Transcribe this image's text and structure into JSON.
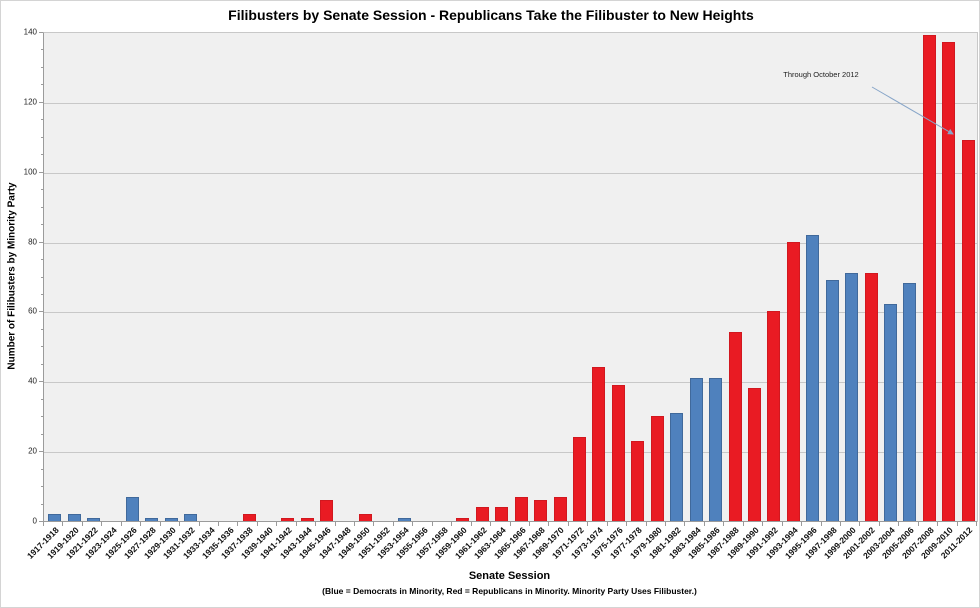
{
  "chart_data": {
    "type": "bar",
    "title": "Filibusters by Senate Session - Republicans Take the Filibuster to New Heights",
    "xlabel": "Senate Session",
    "xlabel_note": "(Blue = Democrats in Minority, Red = Republicans  in Minority. Minority Party Uses Filibuster.)",
    "ylabel": "Number of Filibusters by Minority Party",
    "ylim": [
      0,
      140
    ],
    "y_major_ticks": [
      0,
      20,
      40,
      60,
      80,
      100,
      120,
      140
    ],
    "y_minor_unit": 5,
    "grid": "horizontal-major-on",
    "legend_position": "none",
    "annotation": {
      "text": "Through October 2012",
      "points_to": "2011-2012"
    },
    "colors": {
      "democrats_in_minority_blue": "#4f81bd",
      "republicans_in_minority_red": "#e91b23",
      "plot_background": "#f0f0f0",
      "gridline": "#c8c8c8",
      "axis": "#9b9b9b",
      "annotation_arrow": "#87a5c8"
    },
    "bars": [
      {
        "session": "1917-1918",
        "value": 2,
        "minority": "D"
      },
      {
        "session": "1919-1920",
        "value": 2,
        "minority": "D"
      },
      {
        "session": "1921-1922",
        "value": 1,
        "minority": "D"
      },
      {
        "session": "1923-1924",
        "value": 0,
        "minority": "D"
      },
      {
        "session": "1925-1926",
        "value": 7,
        "minority": "D"
      },
      {
        "session": "1927-1928",
        "value": 1,
        "minority": "D"
      },
      {
        "session": "1929-1930",
        "value": 1,
        "minority": "D"
      },
      {
        "session": "1931-1932",
        "value": 2,
        "minority": "D"
      },
      {
        "session": "1933-1934",
        "value": 0,
        "minority": "R"
      },
      {
        "session": "1935-1936",
        "value": 0,
        "minority": "R"
      },
      {
        "session": "1937-1938",
        "value": 2,
        "minority": "R"
      },
      {
        "session": "1939-1940",
        "value": 0,
        "minority": "R"
      },
      {
        "session": "1941-1942",
        "value": 1,
        "minority": "R"
      },
      {
        "session": "1943-1944",
        "value": 1,
        "minority": "R"
      },
      {
        "session": "1945-1946",
        "value": 6,
        "minority": "R"
      },
      {
        "session": "1947-1948",
        "value": 0,
        "minority": "D"
      },
      {
        "session": "1949-1950",
        "value": 2,
        "minority": "R"
      },
      {
        "session": "1951-1952",
        "value": 0,
        "minority": "R"
      },
      {
        "session": "1953-1954",
        "value": 1,
        "minority": "D"
      },
      {
        "session": "1955-1956",
        "value": 0,
        "minority": "R"
      },
      {
        "session": "1957-1958",
        "value": 0,
        "minority": "R"
      },
      {
        "session": "1959-1960",
        "value": 1,
        "minority": "R"
      },
      {
        "session": "1961-1962",
        "value": 4,
        "minority": "R"
      },
      {
        "session": "1963-1964",
        "value": 4,
        "minority": "R"
      },
      {
        "session": "1965-1966",
        "value": 7,
        "minority": "R"
      },
      {
        "session": "1967-1968",
        "value": 6,
        "minority": "R"
      },
      {
        "session": "1969-1970",
        "value": 7,
        "minority": "R"
      },
      {
        "session": "1971-1972",
        "value": 24,
        "minority": "R"
      },
      {
        "session": "1973-1974",
        "value": 44,
        "minority": "R"
      },
      {
        "session": "1975-1976",
        "value": 39,
        "minority": "R"
      },
      {
        "session": "1977-1978",
        "value": 23,
        "minority": "R"
      },
      {
        "session": "1979-1980",
        "value": 30,
        "minority": "R"
      },
      {
        "session": "1981-1982",
        "value": 31,
        "minority": "D"
      },
      {
        "session": "1983-1984",
        "value": 41,
        "minority": "D"
      },
      {
        "session": "1985-1986",
        "value": 41,
        "minority": "D"
      },
      {
        "session": "1987-1988",
        "value": 54,
        "minority": "R"
      },
      {
        "session": "1989-1990",
        "value": 38,
        "minority": "R"
      },
      {
        "session": "1991-1992",
        "value": 60,
        "minority": "R"
      },
      {
        "session": "1993-1994",
        "value": 80,
        "minority": "R"
      },
      {
        "session": "1995-1996",
        "value": 82,
        "minority": "D"
      },
      {
        "session": "1997-1998",
        "value": 69,
        "minority": "D"
      },
      {
        "session": "1999-2000",
        "value": 71,
        "minority": "D"
      },
      {
        "session": "2001-2002",
        "value": 71,
        "minority": "R"
      },
      {
        "session": "2003-2004",
        "value": 62,
        "minority": "D"
      },
      {
        "session": "2005-2006",
        "value": 68,
        "minority": "D"
      },
      {
        "session": "2007-2008",
        "value": 139,
        "minority": "R"
      },
      {
        "session": "2009-2010",
        "value": 137,
        "minority": "R"
      },
      {
        "session": "2011-2012",
        "value": 109,
        "minority": "R"
      }
    ]
  }
}
